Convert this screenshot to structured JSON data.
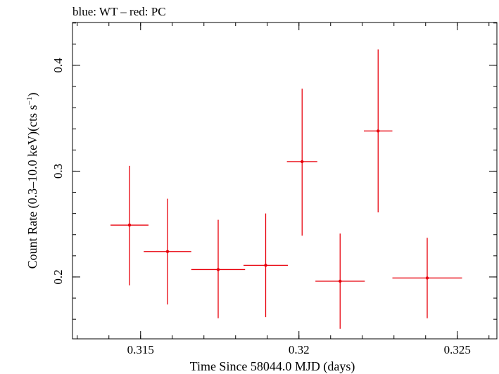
{
  "chart_data": {
    "type": "scatter",
    "title": "blue: WT – red: PC",
    "xlabel": "Time Since 58044.0 MJD (days)",
    "ylabel_main": "Count Rate (0.3–10.0 keV)(cts s",
    "ylabel_sup": "−1",
    "ylabel_end": ")",
    "xlim": [
      0.31285,
      0.32625
    ],
    "ylim": [
      0.1415,
      0.4405
    ],
    "xticks": [
      {
        "value": 0.315,
        "label": "0.315"
      },
      {
        "value": 0.32,
        "label": "0.32"
      },
      {
        "value": 0.325,
        "label": "0.325"
      }
    ],
    "yticks": [
      {
        "value": 0.2,
        "label": "0.2"
      },
      {
        "value": 0.3,
        "label": "0.3"
      },
      {
        "value": 0.4,
        "label": "0.4"
      }
    ],
    "x_minor_step": 0.001,
    "y_minor_step": 0.02,
    "grid": false,
    "series": [
      {
        "color": "#e8000b",
        "points": [
          {
            "x": 0.31465,
            "y": 0.249,
            "xerr": 0.0006,
            "yerr_low": 0.057,
            "yerr_high": 0.056
          },
          {
            "x": 0.31585,
            "y": 0.224,
            "xerr": 0.00075,
            "yerr_low": 0.05,
            "yerr_high": 0.05
          },
          {
            "x": 0.31745,
            "y": 0.207,
            "xerr": 0.00085,
            "yerr_low": 0.046,
            "yerr_high": 0.047
          },
          {
            "x": 0.31895,
            "y": 0.211,
            "xerr": 0.0007,
            "yerr_low": 0.049,
            "yerr_high": 0.049
          },
          {
            "x": 0.3201,
            "y": 0.309,
            "xerr": 0.00048,
            "yerr_low": 0.07,
            "yerr_high": 0.069
          },
          {
            "x": 0.3213,
            "y": 0.196,
            "xerr": 0.00078,
            "yerr_low": 0.045,
            "yerr_high": 0.045
          },
          {
            "x": 0.3225,
            "y": 0.338,
            "xerr": 0.00045,
            "yerr_low": 0.077,
            "yerr_high": 0.077
          },
          {
            "x": 0.32405,
            "y": 0.199,
            "xerr": 0.0011,
            "yerr_low": 0.038,
            "yerr_high": 0.038
          }
        ]
      }
    ]
  }
}
